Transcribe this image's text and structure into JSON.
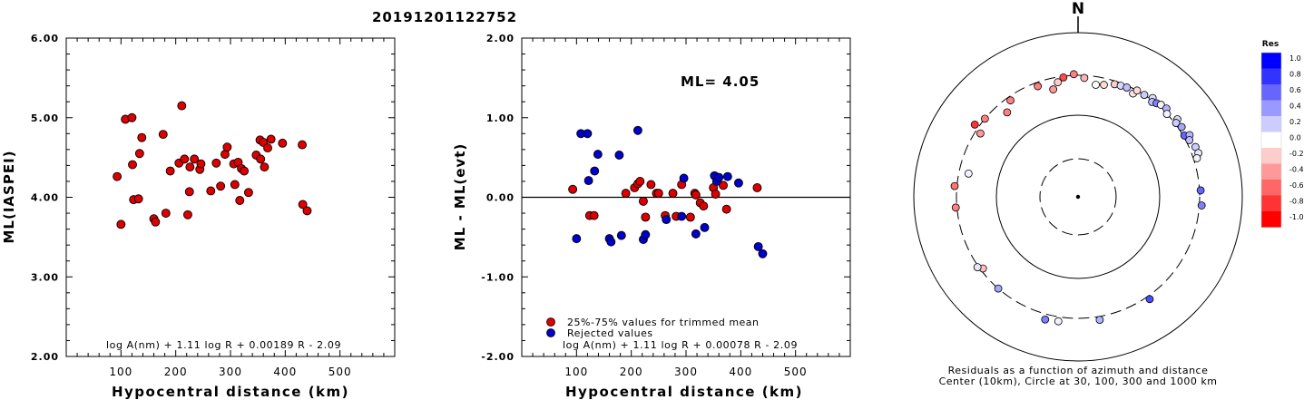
{
  "event_id": "20191201122752",
  "chart_data": [
    {
      "type": "scatter",
      "xlabel": "Hypocentral distance (km)",
      "ylabel": "ML(IASPEI)",
      "xlim": [
        0,
        600
      ],
      "ylim": [
        2.0,
        6.0
      ],
      "x_ticks": [
        100,
        200,
        300,
        400,
        500
      ],
      "x_tick_labels": [
        "100",
        "200",
        "300",
        "400",
        "500"
      ],
      "y_ticks": [
        2,
        3,
        4,
        5,
        6
      ],
      "y_tick_labels": [
        "2.00",
        "3.00",
        "4.00",
        "5.00",
        "6.00"
      ],
      "formula": "log A(nm) + 1.11 log R + 0.00189 R - 2.09",
      "marker_color": "#dd0000",
      "points": [
        [
          93,
          4.26
        ],
        [
          100,
          3.66
        ],
        [
          108,
          4.98
        ],
        [
          120,
          5.0
        ],
        [
          121,
          4.41
        ],
        [
          123,
          3.97
        ],
        [
          132,
          3.98
        ],
        [
          134,
          4.55
        ],
        [
          138,
          4.75
        ],
        [
          160,
          3.73
        ],
        [
          163,
          3.69
        ],
        [
          177,
          4.79
        ],
        [
          182,
          3.8
        ],
        [
          190,
          4.33
        ],
        [
          206,
          4.43
        ],
        [
          211,
          5.15
        ],
        [
          216,
          4.48
        ],
        [
          222,
          3.78
        ],
        [
          225,
          4.07
        ],
        [
          226,
          4.38
        ],
        [
          234,
          4.48
        ],
        [
          244,
          4.35
        ],
        [
          246,
          4.42
        ],
        [
          264,
          4.08
        ],
        [
          274,
          4.43
        ],
        [
          282,
          4.14
        ],
        [
          290,
          4.54
        ],
        [
          294,
          4.63
        ],
        [
          306,
          4.42
        ],
        [
          308,
          4.16
        ],
        [
          314,
          4.44
        ],
        [
          317,
          3.96
        ],
        [
          320,
          4.36
        ],
        [
          325,
          4.33
        ],
        [
          333,
          4.06
        ],
        [
          347,
          4.53
        ],
        [
          355,
          4.48
        ],
        [
          354,
          4.72
        ],
        [
          360,
          4.69
        ],
        [
          362,
          4.38
        ],
        [
          368,
          4.62
        ],
        [
          374,
          4.73
        ],
        [
          395,
          4.68
        ],
        [
          431,
          4.66
        ],
        [
          432,
          3.91
        ],
        [
          440,
          3.83
        ]
      ]
    },
    {
      "type": "scatter",
      "xlabel": "Hypocentral distance (km)",
      "ylabel": "ML - ML(evt)",
      "xlim": [
        0,
        600
      ],
      "ylim": [
        -2.0,
        2.0
      ],
      "x_ticks": [
        100,
        200,
        300,
        400,
        500
      ],
      "x_tick_labels": [
        "100",
        "200",
        "300",
        "400",
        "500"
      ],
      "y_ticks": [
        -2,
        -1,
        0,
        1,
        2
      ],
      "y_tick_labels": [
        "-2.00",
        "-1.00",
        "0.00",
        "1.00",
        "2.00"
      ],
      "annotation": "ML= 4.05",
      "formula": "log A(nm) + 1.11 log R + 0.00078 R - 2.09",
      "reference_line": 0,
      "series": [
        {
          "name": "25%-75% values for trimmed mean",
          "color": "#dd0000",
          "points": [
            [
              93,
              0.1
            ],
            [
              124,
              -0.23
            ],
            [
              132,
              -0.23
            ],
            [
              190,
              0.05
            ],
            [
              206,
              0.12
            ],
            [
              212,
              0.17
            ],
            [
              216,
              0.2
            ],
            [
              222,
              -0.05
            ],
            [
              226,
              -0.25
            ],
            [
              236,
              0.16
            ],
            [
              246,
              0.05
            ],
            [
              250,
              0.05
            ],
            [
              262,
              -0.23
            ],
            [
              276,
              0.05
            ],
            [
              282,
              -0.24
            ],
            [
              292,
              0.16
            ],
            [
              308,
              -0.25
            ],
            [
              316,
              0.05
            ],
            [
              318,
              0.03
            ],
            [
              326,
              -0.07
            ],
            [
              332,
              -0.11
            ],
            [
              350,
              0.12
            ],
            [
              354,
              0.04
            ],
            [
              368,
              0.15
            ],
            [
              374,
              -0.15
            ],
            [
              430,
              0.12
            ]
          ]
        },
        {
          "name": "Rejected values",
          "color": "#0000cc",
          "points": [
            [
              100,
              -0.52
            ],
            [
              108,
              0.8
            ],
            [
              120,
              0.8
            ],
            [
              122,
              0.21
            ],
            [
              133,
              0.33
            ],
            [
              139,
              0.54
            ],
            [
              160,
              -0.52
            ],
            [
              163,
              -0.56
            ],
            [
              178,
              0.53
            ],
            [
              182,
              -0.48
            ],
            [
              212,
              0.84
            ],
            [
              222,
              -0.53
            ],
            [
              226,
              -0.47
            ],
            [
              264,
              -0.28
            ],
            [
              292,
              -0.24
            ],
            [
              296,
              0.24
            ],
            [
              318,
              -0.46
            ],
            [
              334,
              -0.38
            ],
            [
              352,
              0.27
            ],
            [
              356,
              0.2
            ],
            [
              360,
              0.25
            ],
            [
              376,
              0.26
            ],
            [
              396,
              0.18
            ],
            [
              432,
              -0.62
            ],
            [
              440,
              -0.71
            ]
          ]
        }
      ]
    },
    {
      "type": "polar-scatter",
      "north_label": "N",
      "caption_line1": "Residuals as a function of azimuth and distance",
      "caption_line2": "Center (10km), Circle at 30, 100, 300 and 1000 km",
      "circles_km": [
        30,
        100,
        300,
        1000
      ],
      "legend_title": "Res",
      "legend_labels": [
        "1.0",
        "0.8",
        "0.6",
        "0.4",
        "0.2",
        "0.0",
        "-0.2",
        "-0.4",
        "-0.6",
        "-0.8",
        "-1.0"
      ],
      "legend_colors": [
        "#0000ff",
        "#3333ff",
        "#6666ff",
        "#9999ff",
        "#ccccff",
        "#ffffff",
        "#ffcccc",
        "#ff9999",
        "#ff6666",
        "#ff3333",
        "#ff0000"
      ],
      "residuals": [
        {
          "az": 9,
          "km": 240,
          "res": 0.0
        },
        {
          "az": 13,
          "km": 250,
          "res": -0.15
        },
        {
          "az": 18,
          "km": 275,
          "res": -0.2
        },
        {
          "az": 21,
          "km": 280,
          "res": 0.15
        },
        {
          "az": 24,
          "km": 285,
          "res": 0.25
        },
        {
          "az": 28,
          "km": 265,
          "res": -0.1
        },
        {
          "az": 29,
          "km": 300,
          "res": -0.15
        },
        {
          "az": 33,
          "km": 300,
          "res": 0.2
        },
        {
          "az": 37,
          "km": 320,
          "res": 0.15
        },
        {
          "az": 38,
          "km": 290,
          "res": 0.25
        },
        {
          "az": 40,
          "km": 305,
          "res": 0.5
        },
        {
          "az": 42,
          "km": 320,
          "res": 0.05
        },
        {
          "az": 45,
          "km": 330,
          "res": 0.3
        },
        {
          "az": 47,
          "km": 300,
          "res": 0.05
        },
        {
          "az": 52,
          "km": 340,
          "res": 0.15
        },
        {
          "az": 53,
          "km": 310,
          "res": 0.2
        },
        {
          "az": 56,
          "km": 330,
          "res": 0.35
        },
        {
          "az": 60,
          "km": 310,
          "res": 0.6
        },
        {
          "az": 61,
          "km": 355,
          "res": 0.3
        },
        {
          "az": 63,
          "km": 330,
          "res": 0.25
        },
        {
          "az": 67,
          "km": 355,
          "res": 0.2
        },
        {
          "az": 70,
          "km": 360,
          "res": 0.1
        },
        {
          "az": 72,
          "km": 330,
          "res": 0.05
        },
        {
          "az": 87,
          "km": 310,
          "res": 0.6
        },
        {
          "az": 94,
          "km": 320,
          "res": 0.5
        },
        {
          "az": 145,
          "km": 330,
          "res": 0.7
        },
        {
          "az": 170,
          "km": 330,
          "res": 0.3
        },
        {
          "az": 189,
          "km": 340,
          "res": 0.05
        },
        {
          "az": 195,
          "km": 350,
          "res": 0.5
        },
        {
          "az": 221,
          "km": 300,
          "res": 0.35
        },
        {
          "az": 233,
          "km": 280,
          "res": -0.25
        },
        {
          "az": 235,
          "km": 310,
          "res": 0.1
        },
        {
          "az": 265,
          "km": 310,
          "res": -0.5
        },
        {
          "az": 275,
          "km": 320,
          "res": -0.55
        },
        {
          "az": 282,
          "km": 230,
          "res": 0.05
        },
        {
          "az": 303,
          "km": 260,
          "res": -0.4
        },
        {
          "az": 305,
          "km": 340,
          "res": -0.8
        },
        {
          "az": 310,
          "km": 300,
          "res": -0.5
        },
        {
          "az": 320,
          "km": 220,
          "res": -0.5
        },
        {
          "az": 325,
          "km": 270,
          "res": -0.5
        },
        {
          "az": 340,
          "km": 270,
          "res": -0.5
        },
        {
          "az": 347,
          "km": 220,
          "res": -0.4
        },
        {
          "az": 350,
          "km": 260,
          "res": -0.2
        },
        {
          "az": 353,
          "km": 290,
          "res": -0.7
        },
        {
          "az": 358,
          "km": 310,
          "res": -0.5
        },
        {
          "az": 3,
          "km": 280,
          "res": -0.3
        }
      ]
    }
  ]
}
